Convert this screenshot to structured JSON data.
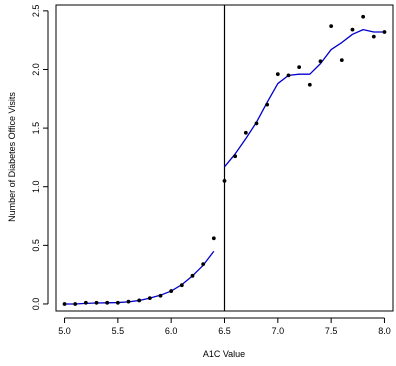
{
  "chart_data": {
    "type": "scatter",
    "title": "",
    "xlabel": "A1C Value",
    "ylabel": "Number of Diabetes Office Visits",
    "xlim": [
      4.92,
      8.08
    ],
    "ylim": [
      -0.06,
      2.55
    ],
    "xticks": [
      "5.0",
      "5.5",
      "6.0",
      "6.5",
      "7.0",
      "7.5",
      "8.0"
    ],
    "yticks": [
      "0.0",
      "0.5",
      "1.0",
      "1.5",
      "2.0",
      "2.5"
    ],
    "x_tick_values": [
      5.0,
      5.5,
      6.0,
      6.5,
      7.0,
      7.5,
      8.0
    ],
    "y_tick_values": [
      0.0,
      0.5,
      1.0,
      1.5,
      2.0,
      2.5
    ],
    "grid": false,
    "threshold_line_x": 6.5,
    "point_color": "#000000",
    "curve_color": "#0000cc",
    "points": [
      {
        "x": 5.0,
        "y": 0.0
      },
      {
        "x": 5.1,
        "y": 0.0
      },
      {
        "x": 5.2,
        "y": 0.01
      },
      {
        "x": 5.3,
        "y": 0.01
      },
      {
        "x": 5.4,
        "y": 0.01
      },
      {
        "x": 5.5,
        "y": 0.01
      },
      {
        "x": 5.6,
        "y": 0.02
      },
      {
        "x": 5.7,
        "y": 0.03
      },
      {
        "x": 5.8,
        "y": 0.05
      },
      {
        "x": 5.9,
        "y": 0.07
      },
      {
        "x": 6.0,
        "y": 0.11
      },
      {
        "x": 6.1,
        "y": 0.16
      },
      {
        "x": 6.2,
        "y": 0.24
      },
      {
        "x": 6.3,
        "y": 0.34
      },
      {
        "x": 6.4,
        "y": 0.56
      },
      {
        "x": 6.5,
        "y": 1.05
      },
      {
        "x": 6.6,
        "y": 1.26
      },
      {
        "x": 6.7,
        "y": 1.46
      },
      {
        "x": 6.8,
        "y": 1.54
      },
      {
        "x": 6.9,
        "y": 1.7
      },
      {
        "x": 7.0,
        "y": 1.96
      },
      {
        "x": 7.1,
        "y": 1.95
      },
      {
        "x": 7.2,
        "y": 2.02
      },
      {
        "x": 7.3,
        "y": 1.87
      },
      {
        "x": 7.4,
        "y": 2.07
      },
      {
        "x": 7.5,
        "y": 2.37
      },
      {
        "x": 7.6,
        "y": 2.08
      },
      {
        "x": 7.7,
        "y": 2.34
      },
      {
        "x": 7.8,
        "y": 2.45
      },
      {
        "x": 7.9,
        "y": 2.28
      },
      {
        "x": 8.0,
        "y": 2.32
      }
    ],
    "fit_left": {
      "x": [
        5.0,
        5.1,
        5.2,
        5.3,
        5.4,
        5.5,
        5.6,
        5.7,
        5.8,
        5.9,
        6.0,
        6.1,
        6.2,
        6.3,
        6.4
      ],
      "y": [
        0.0,
        0.0,
        0.005,
        0.008,
        0.01,
        0.012,
        0.018,
        0.03,
        0.05,
        0.075,
        0.11,
        0.165,
        0.24,
        0.33,
        0.45
      ]
    },
    "fit_right": {
      "x": [
        6.5,
        6.6,
        6.7,
        6.8,
        6.9,
        7.0,
        7.1,
        7.2,
        7.3,
        7.4,
        7.5,
        7.6,
        7.7,
        7.8,
        7.9,
        8.0
      ],
      "y": [
        1.17,
        1.28,
        1.41,
        1.55,
        1.72,
        1.88,
        1.95,
        1.96,
        1.96,
        2.05,
        2.17,
        2.23,
        2.3,
        2.34,
        2.32,
        2.32
      ]
    }
  }
}
